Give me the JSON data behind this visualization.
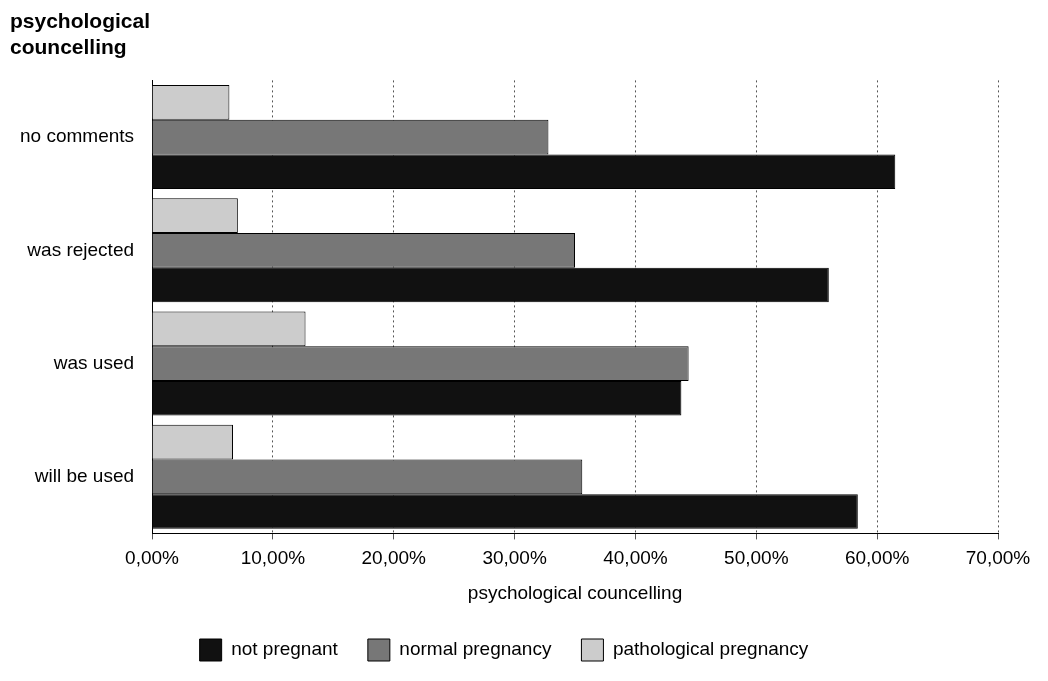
{
  "chart_data": {
    "type": "bar",
    "orientation": "horizontal",
    "title": "psychological\ncouncelling",
    "xlabel": "psychological councelling",
    "categories": [
      "no comments",
      "was rejected",
      "was used",
      "will be used"
    ],
    "series": [
      {
        "name": "not pregnant",
        "color": "#111111",
        "values": [
          61.5,
          56.0,
          43.8,
          58.4
        ]
      },
      {
        "name": "normal pregnancy",
        "color": "#777777",
        "values": [
          32.8,
          35.0,
          44.4,
          35.6
        ]
      },
      {
        "name": "pathological pregnancy",
        "color": "#cccccc",
        "values": [
          6.4,
          7.1,
          12.7,
          6.7
        ]
      }
    ],
    "xlim": [
      0,
      70
    ],
    "xticks": [
      {
        "value": 0,
        "label": "0,00%"
      },
      {
        "value": 10,
        "label": "10,00%"
      },
      {
        "value": 20,
        "label": "20,00%"
      },
      {
        "value": 30,
        "label": "30,00%"
      },
      {
        "value": 40,
        "label": "40,00%"
      },
      {
        "value": 50,
        "label": "50,00%"
      },
      {
        "value": 60,
        "label": "60,00%"
      },
      {
        "value": 70,
        "label": "70,00%"
      }
    ],
    "grid": "x",
    "legend": "bottom"
  }
}
